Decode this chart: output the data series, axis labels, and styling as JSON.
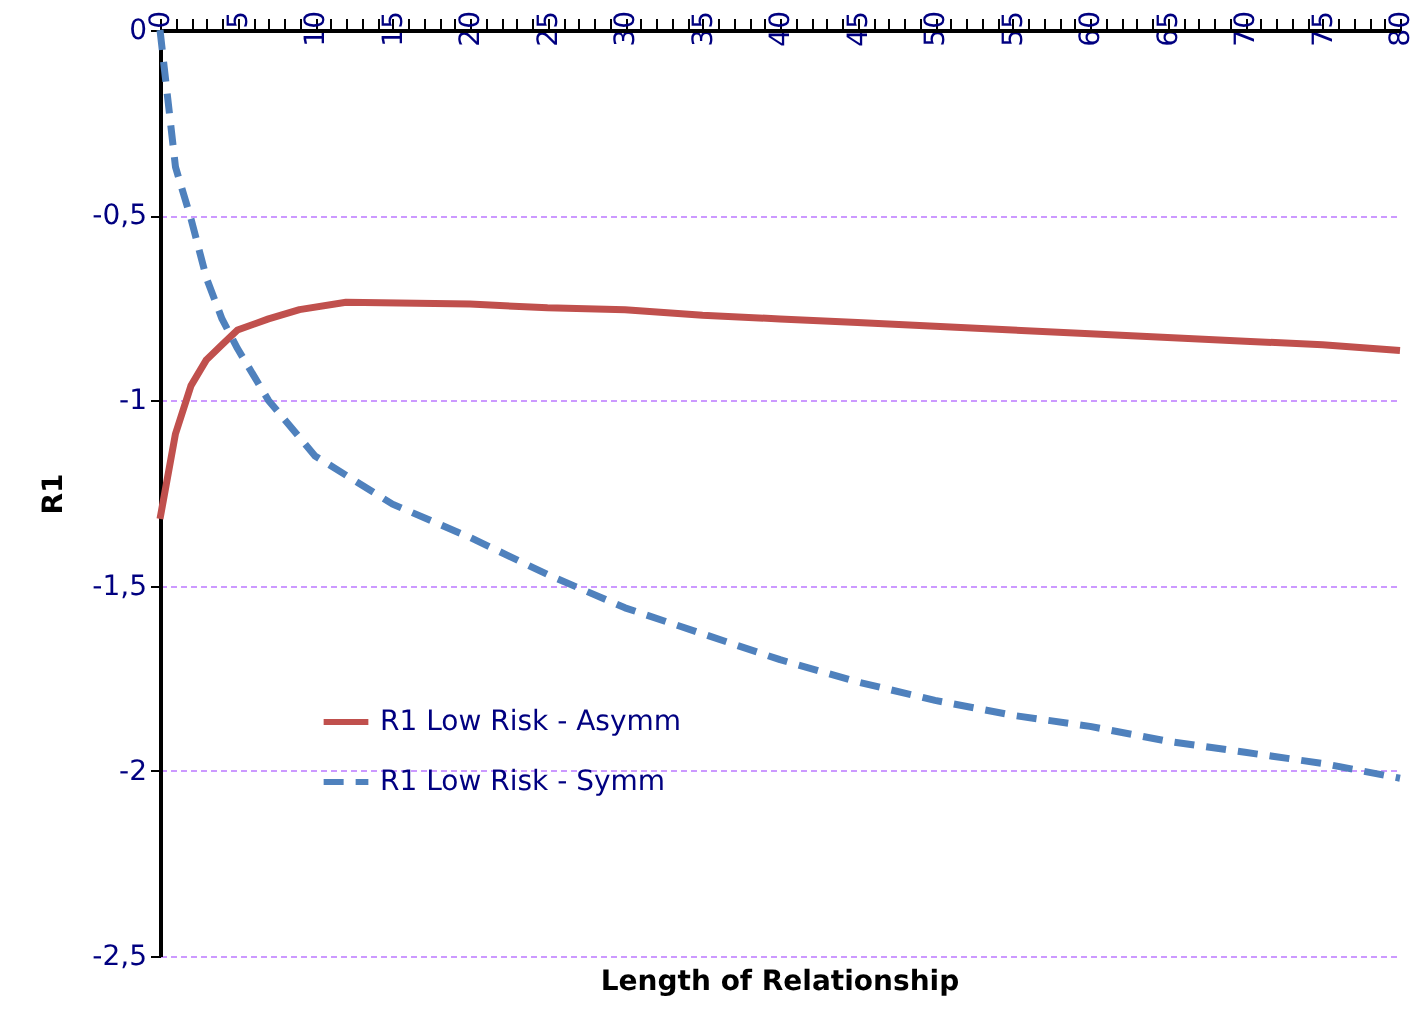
{
  "chart_data": {
    "type": "line",
    "xlabel": "Length of Relationship",
    "ylabel": "R1",
    "xlim": [
      0,
      80
    ],
    "ylim": [
      -2.5,
      0
    ],
    "xticks": [
      0,
      {
        "value": 1,
        "label": null
      },
      {
        "value": 2,
        "label": null
      },
      {
        "value": 3,
        "label": null
      },
      {
        "value": 4,
        "label": null
      },
      5,
      {
        "value": 6,
        "label": null
      },
      {
        "value": 7,
        "label": null
      },
      {
        "value": 8,
        "label": null
      },
      {
        "value": 9,
        "label": null
      },
      10,
      {
        "value": 11,
        "label": null
      },
      {
        "value": 12,
        "label": null
      },
      {
        "value": 13,
        "label": null
      },
      {
        "value": 14,
        "label": null
      },
      15,
      {
        "value": 16,
        "label": null
      },
      {
        "value": 17,
        "label": null
      },
      {
        "value": 18,
        "label": null
      },
      {
        "value": 19,
        "label": null
      },
      20,
      {
        "value": 21,
        "label": null
      },
      {
        "value": 22,
        "label": null
      },
      {
        "value": 23,
        "label": null
      },
      {
        "value": 24,
        "label": null
      },
      25,
      {
        "value": 26,
        "label": null
      },
      {
        "value": 27,
        "label": null
      },
      {
        "value": 28,
        "label": null
      },
      {
        "value": 29,
        "label": null
      },
      30,
      {
        "value": 31,
        "label": null
      },
      {
        "value": 32,
        "label": null
      },
      {
        "value": 33,
        "label": null
      },
      {
        "value": 34,
        "label": null
      },
      35,
      {
        "value": 36,
        "label": null
      },
      {
        "value": 37,
        "label": null
      },
      {
        "value": 38,
        "label": null
      },
      {
        "value": 39,
        "label": null
      },
      40,
      {
        "value": 41,
        "label": null
      },
      {
        "value": 42,
        "label": null
      },
      {
        "value": 43,
        "label": null
      },
      {
        "value": 44,
        "label": null
      },
      45,
      {
        "value": 46,
        "label": null
      },
      {
        "value": 47,
        "label": null
      },
      {
        "value": 48,
        "label": null
      },
      {
        "value": 49,
        "label": null
      },
      50,
      {
        "value": 51,
        "label": null
      },
      {
        "value": 52,
        "label": null
      },
      {
        "value": 53,
        "label": null
      },
      {
        "value": 54,
        "label": null
      },
      55,
      {
        "value": 56,
        "label": null
      },
      {
        "value": 57,
        "label": null
      },
      {
        "value": 58,
        "label": null
      },
      {
        "value": 59,
        "label": null
      },
      60,
      {
        "value": 61,
        "label": null
      },
      {
        "value": 62,
        "label": null
      },
      {
        "value": 63,
        "label": null
      },
      {
        "value": 64,
        "label": null
      },
      65,
      {
        "value": 66,
        "label": null
      },
      {
        "value": 67,
        "label": null
      },
      {
        "value": 68,
        "label": null
      },
      {
        "value": 69,
        "label": null
      },
      70,
      {
        "value": 71,
        "label": null
      },
      {
        "value": 72,
        "label": null
      },
      {
        "value": 73,
        "label": null
      },
      {
        "value": 74,
        "label": null
      },
      75,
      {
        "value": 76,
        "label": null
      },
      {
        "value": 77,
        "label": null
      },
      {
        "value": 78,
        "label": null
      },
      {
        "value": 79,
        "label": null
      },
      80
    ],
    "yticks": [
      0,
      {
        "value": -0.5,
        "label": "-0,5"
      },
      -1,
      {
        "value": -1.5,
        "label": "-1,5"
      },
      -2,
      {
        "value": -2.5,
        "label": "-2,5"
      }
    ],
    "grid": "y",
    "legend": "bottom left",
    "marker": "none",
    "series": [
      {
        "name": "R1 Low Risk - Asymm",
        "color": "#c0504d",
        "line_style": "solid",
        "x": [
          0,
          1,
          2,
          3,
          4,
          5,
          7,
          9,
          12,
          20,
          25,
          30,
          35,
          40,
          45,
          50,
          55,
          60,
          65,
          70,
          75,
          80
        ],
        "values": [
          -1.32,
          -1.09,
          -0.96,
          -0.89,
          -0.85,
          -0.81,
          -0.78,
          -0.755,
          -0.735,
          -0.74,
          -0.75,
          -0.755,
          -0.77,
          -0.78,
          -0.79,
          -0.8,
          -0.81,
          -0.82,
          -0.83,
          -0.84,
          -0.85,
          -0.865
        ]
      },
      {
        "name": "R1 Low Risk - Symm",
        "color": "#4f81bd",
        "line_style": "dashed",
        "x": [
          0,
          1,
          2,
          3,
          4,
          5,
          7,
          10,
          15,
          20,
          25,
          30,
          35,
          40,
          45,
          50,
          55,
          60,
          65,
          70,
          75,
          80
        ],
        "values": [
          0,
          -0.37,
          -0.51,
          -0.67,
          -0.78,
          -0.86,
          -1.0,
          -1.15,
          -1.28,
          -1.37,
          -1.47,
          -1.56,
          -1.63,
          -1.7,
          -1.76,
          -1.81,
          -1.85,
          -1.88,
          -1.92,
          -1.95,
          -1.98,
          -2.02
        ]
      }
    ]
  }
}
